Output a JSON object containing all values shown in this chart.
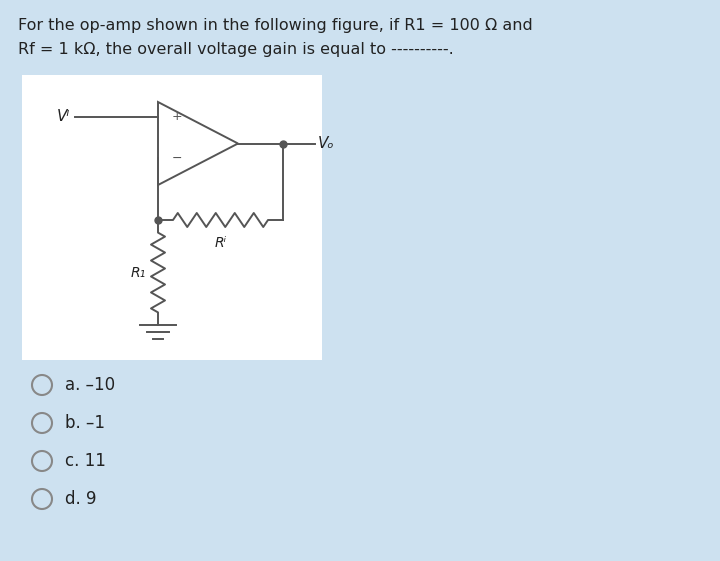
{
  "bg_color": "#cde1f0",
  "white_box_color": "#ffffff",
  "title_line1": "For the op-amp shown in the following figure, if R1 = 100 Ω and",
  "title_line2": "Rf = 1 kΩ, the overall voltage gain is equal to ----------.",
  "title_fontsize": 11.5,
  "options": [
    "a. –10",
    "b. –1",
    "c. 11",
    "d. 9"
  ],
  "option_fontsize": 12,
  "text_color": "#222222",
  "line_color": "#555555",
  "line_width": 1.4
}
